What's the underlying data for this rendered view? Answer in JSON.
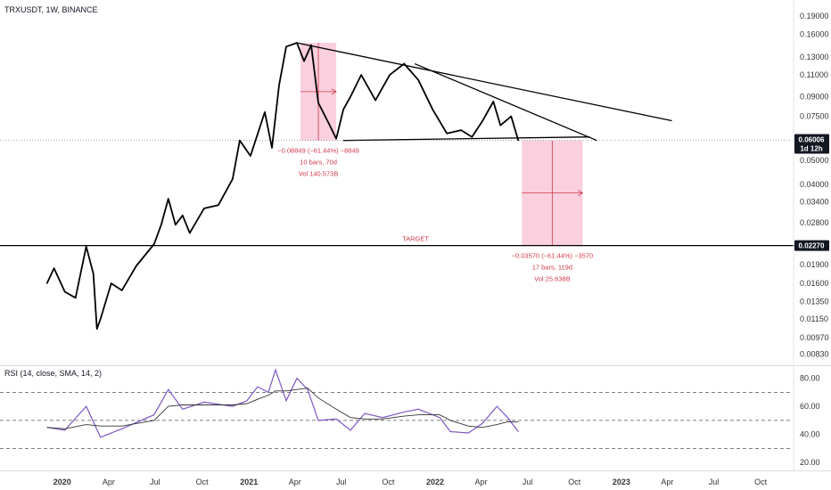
{
  "header": {
    "title": "TRXUSDT, 1W, BINANCE"
  },
  "price_axis": {
    "ticks": [
      "0.19000",
      "0.16000",
      "0.13000",
      "0.11000",
      "0.09000",
      "0.07500",
      "0.06006",
      "0.05000",
      "0.04000",
      "0.03400",
      "0.02800",
      "0.02270",
      "0.01900",
      "0.01600",
      "0.01350",
      "0.01150",
      "0.00970",
      "0.00830"
    ],
    "last_price": "0.06006",
    "countdown": "1d 12h",
    "target_price": "0.02270"
  },
  "rsi_axis": {
    "ticks": [
      "80.00",
      "60.00",
      "40.00",
      "20.00"
    ]
  },
  "time_axis": {
    "ticks": [
      "2020",
      "Apr",
      "Jul",
      "Oct",
      "2021",
      "Apr",
      "Jul",
      "Oct",
      "2022",
      "Apr",
      "Jul",
      "Oct",
      "2023",
      "Apr",
      "Jul",
      "Oct"
    ]
  },
  "annotations": {
    "target_label": "TARGET",
    "measure1": [
      "−0.08849 (−61.44%) −8849",
      "10 bars, 70d",
      "Vol 140.573B"
    ],
    "measure2": [
      "−0.03570 (−61.44%) −3570",
      "17 bars, 119d",
      "Vol 25.638B"
    ]
  },
  "colors": {
    "price_line": "#000000",
    "rsi_line": "#7e57c2",
    "rsi_sma": "#333333",
    "measure_fill": "#f8bbd0",
    "measure_text": "#d03a4b"
  },
  "chart_data": {
    "type": "line",
    "title": "TRXUSDT, 1W, BINANCE",
    "x_range": [
      "2019-09",
      "2023-12"
    ],
    "y_scale": "log",
    "y_range": [
      0.0075,
      0.22
    ],
    "series": [
      {
        "name": "",
        "x": [
          "2019-12-02",
          "2019-12-16",
          "2020-01-06",
          "2020-01-27",
          "2020-02-17",
          "2020-03-02",
          "2020-03-09",
          "2020-03-16",
          "2020-04-06",
          "2020-04-27",
          "2020-05-25",
          "2020-06-29",
          "2020-07-13",
          "2020-07-27",
          "2020-08-10",
          "2020-08-24",
          "2020-09-07",
          "2020-10-05",
          "2020-11-02",
          "2020-11-30",
          "2020-12-14",
          "2021-01-04",
          "2021-02-01",
          "2021-02-15",
          "2021-03-01",
          "2021-03-15",
          "2021-04-05",
          "2021-04-19",
          "2021-05-03",
          "2021-05-17",
          "2021-06-07",
          "2021-06-21",
          "2021-07-05",
          "2021-07-19",
          "2021-08-09",
          "2021-09-06",
          "2021-10-04",
          "2021-11-01",
          "2021-11-29",
          "2021-12-27",
          "2022-01-24",
          "2022-02-21",
          "2022-03-14",
          "2022-04-04",
          "2022-04-25",
          "2022-05-09",
          "2022-05-30",
          "2022-06-13"
        ],
        "y": [
          0.016,
          0.0184,
          0.0148,
          0.014,
          0.0225,
          0.0175,
          0.0105,
          0.0115,
          0.016,
          0.015,
          0.0188,
          0.023,
          0.0275,
          0.035,
          0.0275,
          0.03,
          0.0255,
          0.032,
          0.033,
          0.042,
          0.06,
          0.052,
          0.078,
          0.056,
          0.1,
          0.143,
          0.148,
          0.125,
          0.145,
          0.085,
          0.07,
          0.061,
          0.08,
          0.09,
          0.11,
          0.087,
          0.11,
          0.122,
          0.105,
          0.08,
          0.064,
          0.066,
          0.062,
          0.072,
          0.086,
          0.069,
          0.075,
          0.06
        ]
      }
    ],
    "lines": [
      {
        "x": [
          "2021-04-05",
          "2023-04-10"
        ],
        "y": [
          0.148,
          0.072
        ]
      },
      {
        "x": [
          "2021-11-22",
          "2022-11-14"
        ],
        "y": [
          0.122,
          0.06
        ]
      },
      {
        "x": [
          "2021-07-05",
          "2022-10-31"
        ],
        "y": [
          0.06,
          0.062
        ]
      },
      {
        "x": [
          "2019-09-01",
          "2023-12-31"
        ],
        "y": [
          0.0227,
          0.0227
        ],
        "label": "TARGET"
      }
    ],
    "measures": [
      {
        "x": [
          "2021-04-12",
          "2021-06-21"
        ],
        "y": [
          0.148,
          0.06
        ],
        "label": "−0.08849 (−61.44%) −8849 | 10 bars, 70d | Vol 140.573B"
      },
      {
        "x": [
          "2022-06-20",
          "2022-10-17"
        ],
        "y": [
          0.06,
          0.0227
        ],
        "label": "−0.03570 (−61.44%) −3570 | 17 bars, 119d | Vol 25.638B"
      }
    ],
    "last_price": 0.06006,
    "rsi": {
      "title": "RSI (14, close, SMA, 14, 2)",
      "y_range": [
        15,
        88
      ],
      "levels": [
        70,
        50,
        30
      ],
      "x": [
        "2019-12-02",
        "2020-01-06",
        "2020-02-17",
        "2020-03-16",
        "2020-04-27",
        "2020-06-29",
        "2020-07-27",
        "2020-08-24",
        "2020-10-05",
        "2020-11-30",
        "2020-12-28",
        "2021-01-18",
        "2021-02-08",
        "2021-02-22",
        "2021-03-15",
        "2021-04-05",
        "2021-04-26",
        "2021-05-17",
        "2021-06-21",
        "2021-07-19",
        "2021-08-16",
        "2021-09-20",
        "2021-11-01",
        "2021-11-29",
        "2022-01-10",
        "2022-01-31",
        "2022-03-07",
        "2022-04-04",
        "2022-05-02",
        "2022-05-23",
        "2022-06-13"
      ],
      "values": [
        45,
        43,
        60,
        38,
        44,
        54,
        72,
        58,
        63,
        60,
        64,
        74,
        70,
        86,
        64,
        80,
        72,
        50,
        51,
        43,
        55,
        52,
        56,
        58,
        52,
        42,
        41,
        48,
        60,
        52,
        42
      ],
      "sma": [
        45,
        44,
        47,
        46,
        46,
        50,
        60,
        61,
        61,
        61,
        62,
        65,
        68,
        71,
        71,
        72,
        73,
        66,
        58,
        52,
        51,
        51,
        53,
        54,
        54,
        50,
        46,
        45,
        47,
        49,
        49
      ]
    }
  }
}
